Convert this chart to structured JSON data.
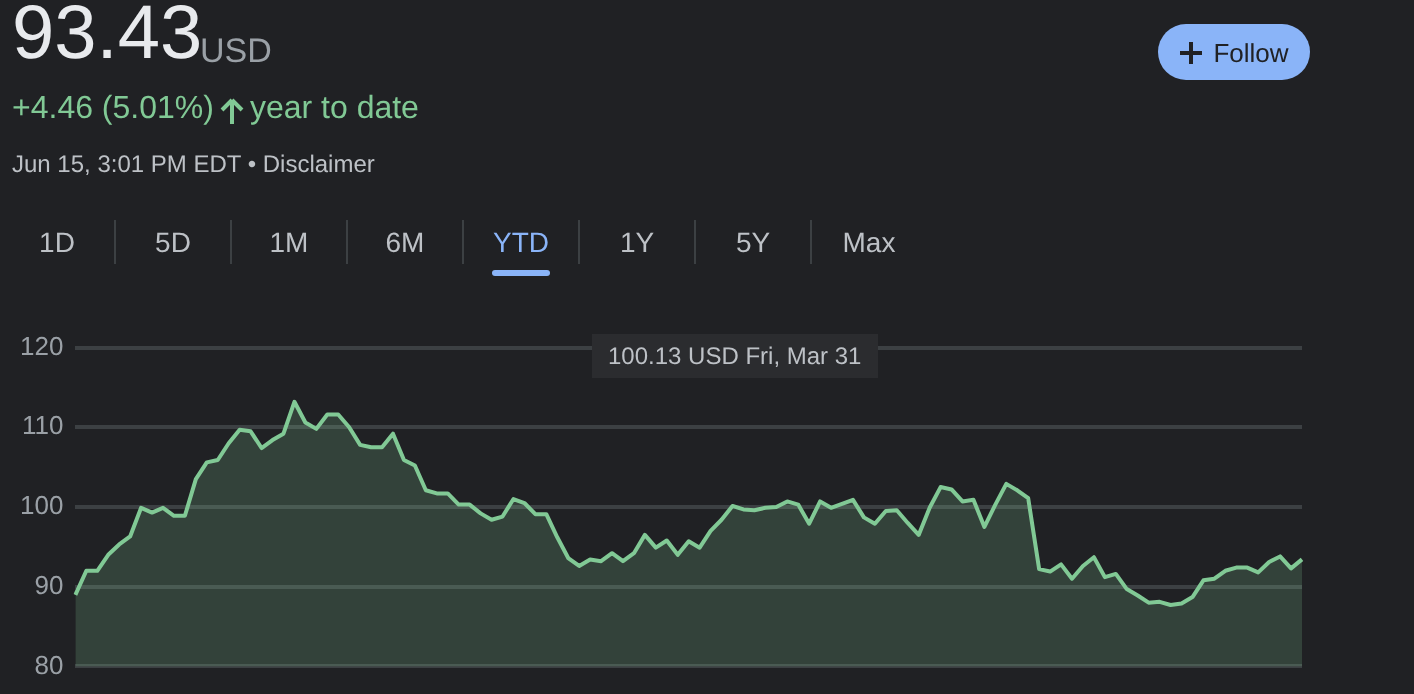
{
  "chart_data": {
    "type": "area",
    "title": "93.43",
    "subtitle": "+4.46 (5.01%) year to date",
    "annotations": [
      "USD",
      "Jun 15, 3:01 PM EDT • Disclaimer",
      "1D",
      "5D",
      "1M",
      "6M",
      "YTD",
      "1Y",
      "5Y",
      "Max",
      "Follow",
      "100.13 USD  Fri, Mar 31"
    ],
    "categories": [
      null,
      null,
      null,
      null,
      null,
      null,
      null,
      null,
      null,
      null,
      null,
      null,
      null,
      null,
      null,
      null,
      null,
      null,
      null,
      null,
      null,
      null,
      null,
      null,
      null,
      null,
      null,
      null,
      null,
      null,
      null,
      null,
      null,
      null,
      null,
      null,
      null,
      null,
      null,
      null,
      null,
      null,
      null,
      null,
      null,
      null,
      null,
      null,
      null,
      null,
      null,
      null,
      null,
      null,
      null,
      null,
      null,
      null,
      null,
      null,
      null,
      null,
      null,
      null,
      null,
      null,
      null,
      null,
      null,
      null,
      null,
      null,
      null,
      null,
      null,
      null,
      null,
      null,
      null,
      null,
      null,
      null,
      null,
      null,
      null,
      null,
      null,
      null,
      null,
      null,
      null,
      null,
      null,
      null,
      null,
      null,
      null,
      null,
      null,
      null,
      null,
      null,
      null,
      null,
      null,
      null,
      null,
      null,
      null,
      null,
      null,
      null,
      null
    ],
    "series": [
      {
        "color": "#81c995",
        "values": [
          88.97,
          92.0,
          92.0,
          94.0,
          95.3,
          96.3,
          99.9,
          99.3,
          99.9,
          98.9,
          98.9,
          103.5,
          105.6,
          105.9,
          108.0,
          109.7,
          109.5,
          107.4,
          108.4,
          109.2,
          113.2,
          110.6,
          109.8,
          111.6,
          111.6,
          110.0,
          107.8,
          107.5,
          107.5,
          109.2,
          105.9,
          105.2,
          102.1,
          101.7,
          101.7,
          100.3,
          100.3,
          99.2,
          98.4,
          98.8,
          101.0,
          100.5,
          99.1,
          99.1,
          96.2,
          93.6,
          92.6,
          93.4,
          93.2,
          94.2,
          93.2,
          94.2,
          96.5,
          94.9,
          95.8,
          94.0,
          95.7,
          94.9,
          97.0,
          98.4,
          100.13,
          99.7,
          99.6,
          99.9,
          100.0,
          100.7,
          100.3,
          97.9,
          100.7,
          99.9,
          100.4,
          100.9,
          98.7,
          97.9,
          99.5,
          99.6,
          98.0,
          96.5,
          99.9,
          102.5,
          102.2,
          100.7,
          100.9,
          97.5,
          100.3,
          102.9,
          102.1,
          101.1,
          92.2,
          91.9,
          92.8,
          91.0,
          92.6,
          93.7,
          91.2,
          91.6,
          89.7,
          88.9,
          88.0,
          88.1,
          87.7,
          87.9,
          88.7,
          90.8,
          91.0,
          92.0,
          92.4,
          92.4,
          91.8,
          93.1,
          93.8,
          92.3,
          93.43
        ]
      }
    ],
    "ylim": [
      80,
      120
    ],
    "yticks": [
      80,
      90,
      100,
      110,
      120
    ],
    "grid": "y",
    "legend": false,
    "tick_labels": "y",
    "marker": "none",
    "line_style": "solid"
  }
}
